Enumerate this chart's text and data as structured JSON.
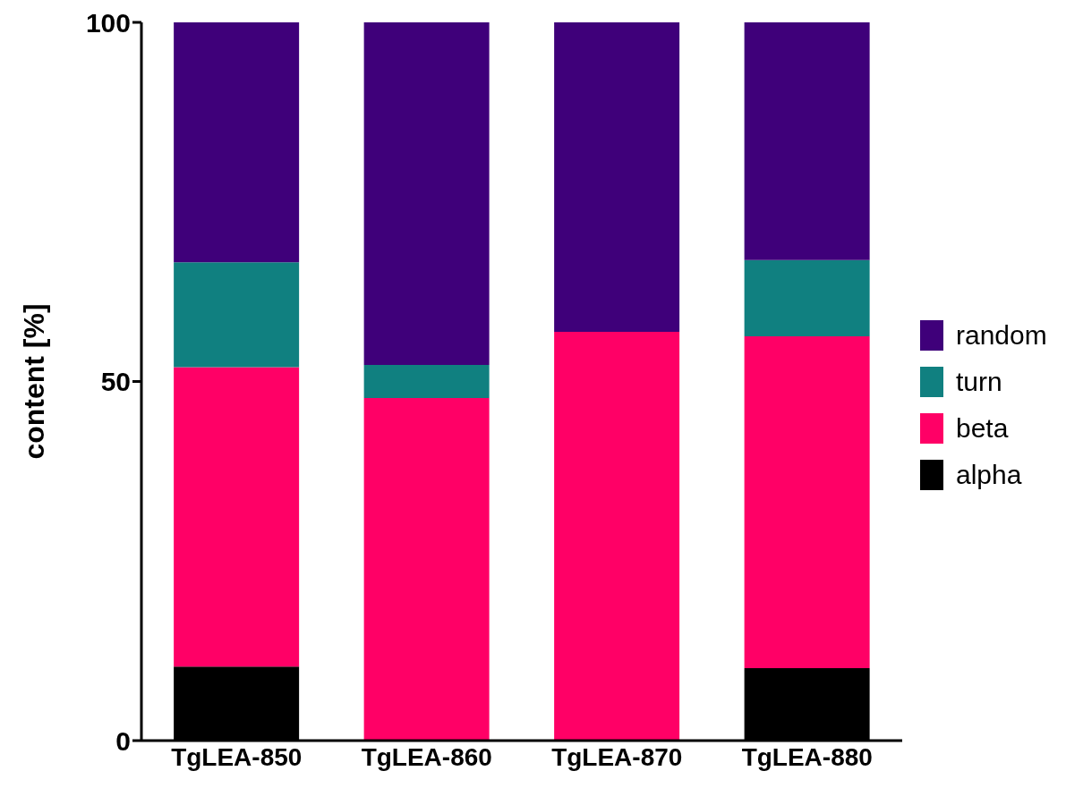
{
  "chart_data": {
    "type": "bar",
    "ylabel": "content [%]",
    "categories": [
      "TgLEA-850",
      "TgLEA-860",
      "TgLEA-870",
      "TgLEA-880"
    ],
    "series": [
      {
        "name": "alpha",
        "color": "#000000",
        "values": [
          10.3,
          0,
          0,
          10.1
        ]
      },
      {
        "name": "beta",
        "color": "#ff0066",
        "values": [
          41.7,
          47.7,
          56.9,
          46.2
        ]
      },
      {
        "name": "turn",
        "color": "#108080",
        "values": [
          14.6,
          4.6,
          0,
          10.6
        ]
      },
      {
        "name": "random",
        "color": "#3f007a",
        "values": [
          33.4,
          47.7,
          43.1,
          33.1
        ]
      }
    ],
    "stacked": true,
    "ylim": [
      0,
      100
    ],
    "yticks": [
      0,
      50,
      100
    ],
    "grid": false,
    "legend": "right"
  }
}
